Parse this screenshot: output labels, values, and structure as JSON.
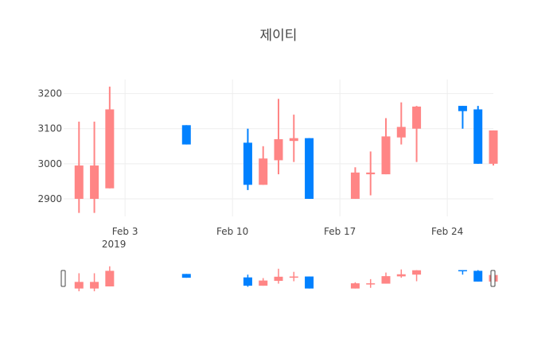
{
  "chart_data": {
    "type": "candlestick",
    "title": "제이티",
    "x_ticks": [
      {
        "date": "2019-02-03",
        "label": "Feb 3",
        "sublabel": "2019"
      },
      {
        "date": "2019-02-10",
        "label": "Feb 10",
        "sublabel": ""
      },
      {
        "date": "2019-02-17",
        "label": "Feb 17",
        "sublabel": ""
      },
      {
        "date": "2019-02-24",
        "label": "Feb 24",
        "sublabel": ""
      }
    ],
    "y_ticks": [
      2900,
      3000,
      3100,
      3200
    ],
    "x_range": [
      "2019-01-30",
      "2019-02-27"
    ],
    "y_range": [
      2850,
      3240
    ],
    "grid": true,
    "range_slider": true,
    "colors": {
      "increasing": "#ff8585",
      "decreasing": "#0181ff",
      "grid": "#eeeeee",
      "text": "#444444",
      "slider_border": "#444444"
    },
    "candles": [
      {
        "date": "2019-01-31",
        "open": 2900,
        "high": 3120,
        "low": 2860,
        "close": 2995
      },
      {
        "date": "2019-02-01",
        "open": 2900,
        "high": 3120,
        "low": 2860,
        "close": 2995
      },
      {
        "date": "2019-02-02",
        "open": 2930,
        "high": 3220,
        "low": 2930,
        "close": 3155
      },
      {
        "date": "2019-02-07",
        "open": 3110,
        "high": 3110,
        "low": 3055,
        "close": 3055
      },
      {
        "date": "2019-02-11",
        "open": 3060,
        "high": 3100,
        "low": 2925,
        "close": 2940
      },
      {
        "date": "2019-02-12",
        "open": 2940,
        "high": 3050,
        "low": 2940,
        "close": 3015
      },
      {
        "date": "2019-02-13",
        "open": 3010,
        "high": 3185,
        "low": 2970,
        "close": 3070
      },
      {
        "date": "2019-02-14",
        "open": 3065,
        "high": 3140,
        "low": 3005,
        "close": 3073
      },
      {
        "date": "2019-02-15",
        "open": 3073,
        "high": 3073,
        "low": 2900,
        "close": 2900
      },
      {
        "date": "2019-02-18",
        "open": 2900,
        "high": 2990,
        "low": 2900,
        "close": 2975
      },
      {
        "date": "2019-02-19",
        "open": 2970,
        "high": 3035,
        "low": 2910,
        "close": 2975
      },
      {
        "date": "2019-02-20",
        "open": 2970,
        "high": 3130,
        "low": 2970,
        "close": 3078
      },
      {
        "date": "2019-02-21",
        "open": 3075,
        "high": 3175,
        "low": 3055,
        "close": 3105
      },
      {
        "date": "2019-02-22",
        "open": 3100,
        "high": 3165,
        "low": 3005,
        "close": 3163
      },
      {
        "date": "2019-02-25",
        "open": 3165,
        "high": 3165,
        "low": 3100,
        "close": 3150
      },
      {
        "date": "2019-02-26",
        "open": 3155,
        "high": 3165,
        "low": 3000,
        "close": 3000
      },
      {
        "date": "2019-02-27",
        "open": 3000,
        "high": 3095,
        "low": 2995,
        "close": 3095
      }
    ]
  }
}
